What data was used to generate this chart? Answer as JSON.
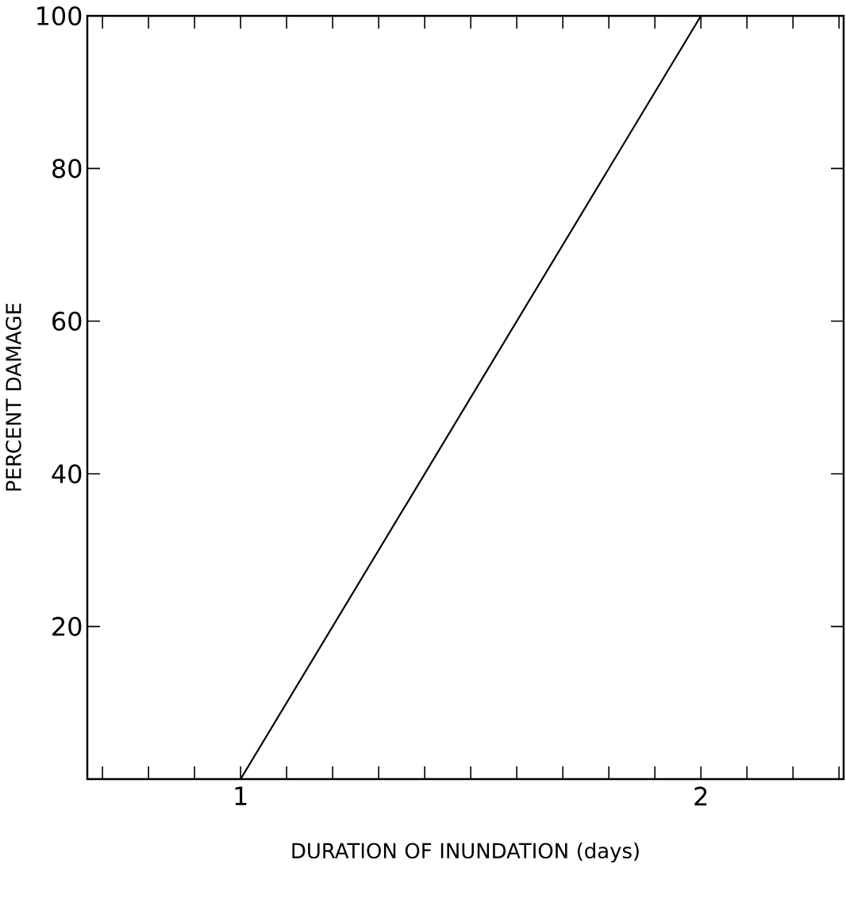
{
  "chart_data": {
    "type": "line",
    "xlabel": "DURATION OF INUNDATION (days)",
    "ylabel": "PERCENT DAMAGE",
    "x": [
      1,
      2
    ],
    "series": [
      {
        "color": "#000000",
        "values": [
          0,
          100
        ]
      }
    ],
    "xlim": [
      0.667,
      2.31
    ],
    "ylim": [
      0,
      100
    ],
    "xticks": [
      {
        "value": 0.7,
        "label": null
      },
      {
        "value": 0.8,
        "label": null
      },
      {
        "value": 0.9,
        "label": null
      },
      1,
      {
        "value": 1.1,
        "label": null
      },
      {
        "value": 1.2,
        "label": null
      },
      {
        "value": 1.3,
        "label": null
      },
      {
        "value": 1.4,
        "label": null
      },
      {
        "value": 1.5,
        "label": null
      },
      {
        "value": 1.6,
        "label": null
      },
      {
        "value": 1.7,
        "label": null
      },
      {
        "value": 1.8,
        "label": null
      },
      {
        "value": 1.9,
        "label": null
      },
      2,
      {
        "value": 2.1,
        "label": null
      },
      {
        "value": 2.2,
        "label": null
      },
      {
        "value": 2.3,
        "label": null
      }
    ],
    "yticks": [
      20,
      40,
      60,
      80,
      100
    ],
    "grid": false,
    "marker": "none",
    "line_style": "solid"
  }
}
